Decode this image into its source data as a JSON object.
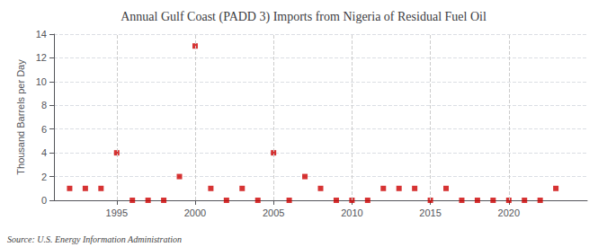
{
  "chart_data": {
    "type": "scatter",
    "title": "Annual Gulf Coast (PADD 3) Imports from Nigeria of Residual Fuel Oil",
    "ylabel": "Thousand Barrels per Day",
    "annotations": [
      "Source: U.S. Energy Information Administration"
    ],
    "x": [
      1992,
      1993,
      1994,
      1995,
      1996,
      1997,
      1998,
      1999,
      2000,
      2001,
      2002,
      2003,
      2004,
      2005,
      2006,
      2007,
      2008,
      2009,
      2010,
      2011,
      2012,
      2013,
      2014,
      2015,
      2016,
      2017,
      2018,
      2019,
      2020,
      2021,
      2022,
      2023
    ],
    "values": [
      1,
      1,
      1,
      4,
      0,
      0,
      0,
      2,
      13,
      1,
      0,
      1,
      0,
      4,
      0,
      2,
      1,
      0,
      0,
      0,
      1,
      1,
      1,
      0,
      1,
      0,
      0,
      0,
      0,
      0,
      0,
      1
    ],
    "color": "#cc0000",
    "marker": "square",
    "xlim": [
      1991,
      2025
    ],
    "xticks": [
      1995,
      2000,
      2005,
      2010,
      2015,
      2020
    ],
    "ylim": [
      0,
      14
    ],
    "yticks": [
      0,
      2,
      4,
      6,
      8,
      10,
      12,
      14
    ],
    "grid": true
  }
}
